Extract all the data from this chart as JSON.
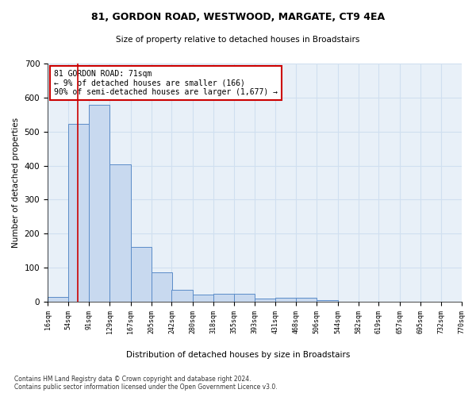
{
  "title1": "81, GORDON ROAD, WESTWOOD, MARGATE, CT9 4EA",
  "title2": "Size of property relative to detached houses in Broadstairs",
  "xlabel": "Distribution of detached houses by size in Broadstairs",
  "ylabel": "Number of detached properties",
  "bar_left_edges": [
    16,
    54,
    91,
    129,
    167,
    205,
    242,
    280,
    318,
    355,
    393,
    431,
    468,
    506,
    544,
    582,
    619,
    657,
    695,
    732
  ],
  "bar_heights": [
    13,
    522,
    578,
    403,
    161,
    87,
    35,
    22,
    23,
    23,
    10,
    12,
    12,
    5,
    0,
    0,
    0,
    0,
    0,
    0
  ],
  "bin_width": 38,
  "bar_color": "#c8d9ef",
  "bar_edge_color": "#5b8cc8",
  "property_line_x": 71,
  "property_line_color": "#cc0000",
  "annotation_text": "81 GORDON ROAD: 71sqm\n← 9% of detached houses are smaller (166)\n90% of semi-detached houses are larger (1,677) →",
  "annotation_box_color": "#ffffff",
  "annotation_box_edge": "#cc0000",
  "tick_labels": [
    "16sqm",
    "54sqm",
    "91sqm",
    "129sqm",
    "167sqm",
    "205sqm",
    "242sqm",
    "280sqm",
    "318sqm",
    "355sqm",
    "393sqm",
    "431sqm",
    "468sqm",
    "506sqm",
    "544sqm",
    "582sqm",
    "619sqm",
    "657sqm",
    "695sqm",
    "732sqm",
    "770sqm"
  ],
  "ylim": [
    0,
    700
  ],
  "yticks": [
    0,
    100,
    200,
    300,
    400,
    500,
    600,
    700
  ],
  "grid_color": "#d0dff0",
  "bg_color": "#e8f0f8",
  "footnote1": "Contains HM Land Registry data © Crown copyright and database right 2024.",
  "footnote2": "Contains public sector information licensed under the Open Government Licence v3.0."
}
